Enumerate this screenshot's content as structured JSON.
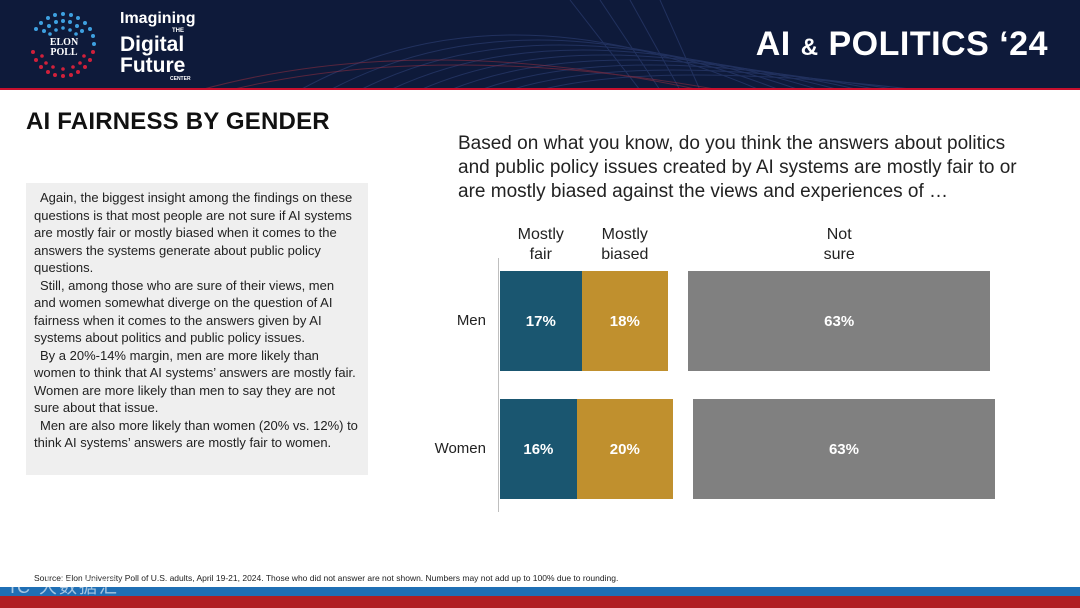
{
  "header": {
    "brand_line1": "Imagining",
    "brand_the": "THE",
    "brand_line2": "Digital",
    "brand_line3": "Future",
    "brand_center": "CENTER",
    "logo_text_1": "ELON",
    "logo_text_2": "POLL",
    "title_main_1": "AI ",
    "title_amp": "&",
    "title_main_2": " POLITICS ‘24"
  },
  "page_title": "AI FAIRNESS BY GENDER",
  "text_box": {
    "paragraphs": [
      "Again, the biggest insight among the findings on these questions is that most people are not sure if AI systems are mostly fair or mostly biased when it comes to the answers the systems generate about public policy questions.",
      "Still, among those who are sure of their views, men and women somewhat diverge on the question of AI fairness when it comes to the answers given by AI systems about politics and public policy issues.",
      "By a 20%-14% margin, men are more likely than women to think that AI systems’ answers are mostly fair. Women are more likely than men to say they are not sure about that issue.",
      "Men are also more likely than women (20% vs. 12%) to think AI systems’ answers are mostly fair to women."
    ]
  },
  "question": "Based on what you know, do you think the answers about politics and public policy issues created by AI systems are mostly fair to or are mostly biased against the views and experiences of …",
  "chart_data": {
    "type": "bar",
    "orientation": "horizontal-stacked",
    "categories": [
      "Men",
      "Women"
    ],
    "series": [
      {
        "name": "Mostly fair",
        "legend_line1": "Mostly",
        "legend_line2": "fair",
        "values": [
          17,
          16
        ],
        "labels": [
          "17%",
          "16%"
        ],
        "color": "#1a5670"
      },
      {
        "name": "Mostly biased",
        "legend_line1": "Mostly",
        "legend_line2": "biased",
        "values": [
          18,
          20
        ],
        "labels": [
          "18%",
          "20%"
        ],
        "color": "#c0902e"
      },
      {
        "name": "Not sure",
        "legend_line1": "Not",
        "legend_line2": "sure",
        "values": [
          63,
          63
        ],
        "labels": [
          "63%",
          "63%"
        ],
        "color": "#808080"
      }
    ],
    "title": "",
    "xlabel": "",
    "ylabel": ""
  },
  "source": "Source: Elon University Poll of U.S. adults, April 19-21, 2024. Those who did not answer are not shown. Numbers may not add up to 100% due to rounding.",
  "watermark": "IC 大数据汇"
}
